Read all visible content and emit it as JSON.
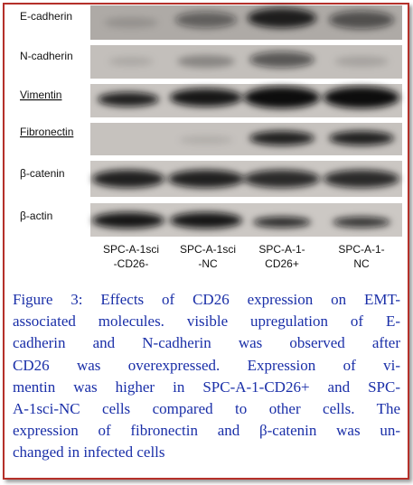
{
  "blot": {
    "rows": [
      "E-cadherin",
      "N-cadherin",
      "Vimentin",
      "Fibronectin",
      "β-catenin",
      "β-actin"
    ],
    "lanes": [
      [
        "SPC-A-1sci",
        "-CD26-"
      ],
      [
        "SPC-A-1sci",
        "-NC"
      ],
      [
        "SPC-A-1-",
        "CD26+"
      ],
      [
        "SPC-A-1-",
        "NC"
      ]
    ]
  },
  "caption": {
    "lines": [
      "Figure 3: Effects of CD26 expression on EMT-",
      "associated molecules. visible upregulation of E-",
      "cadherin and N-cadherin was observed after",
      "CD26 was overexpressed. Expression of vi-",
      "mentin was higher in SPC-A-1-CD26+ and SPC-",
      "A-1sci-NC cells compared to other cells. The",
      "expression of fibronectin and β-catenin was un-",
      "changed in infected cells"
    ]
  }
}
